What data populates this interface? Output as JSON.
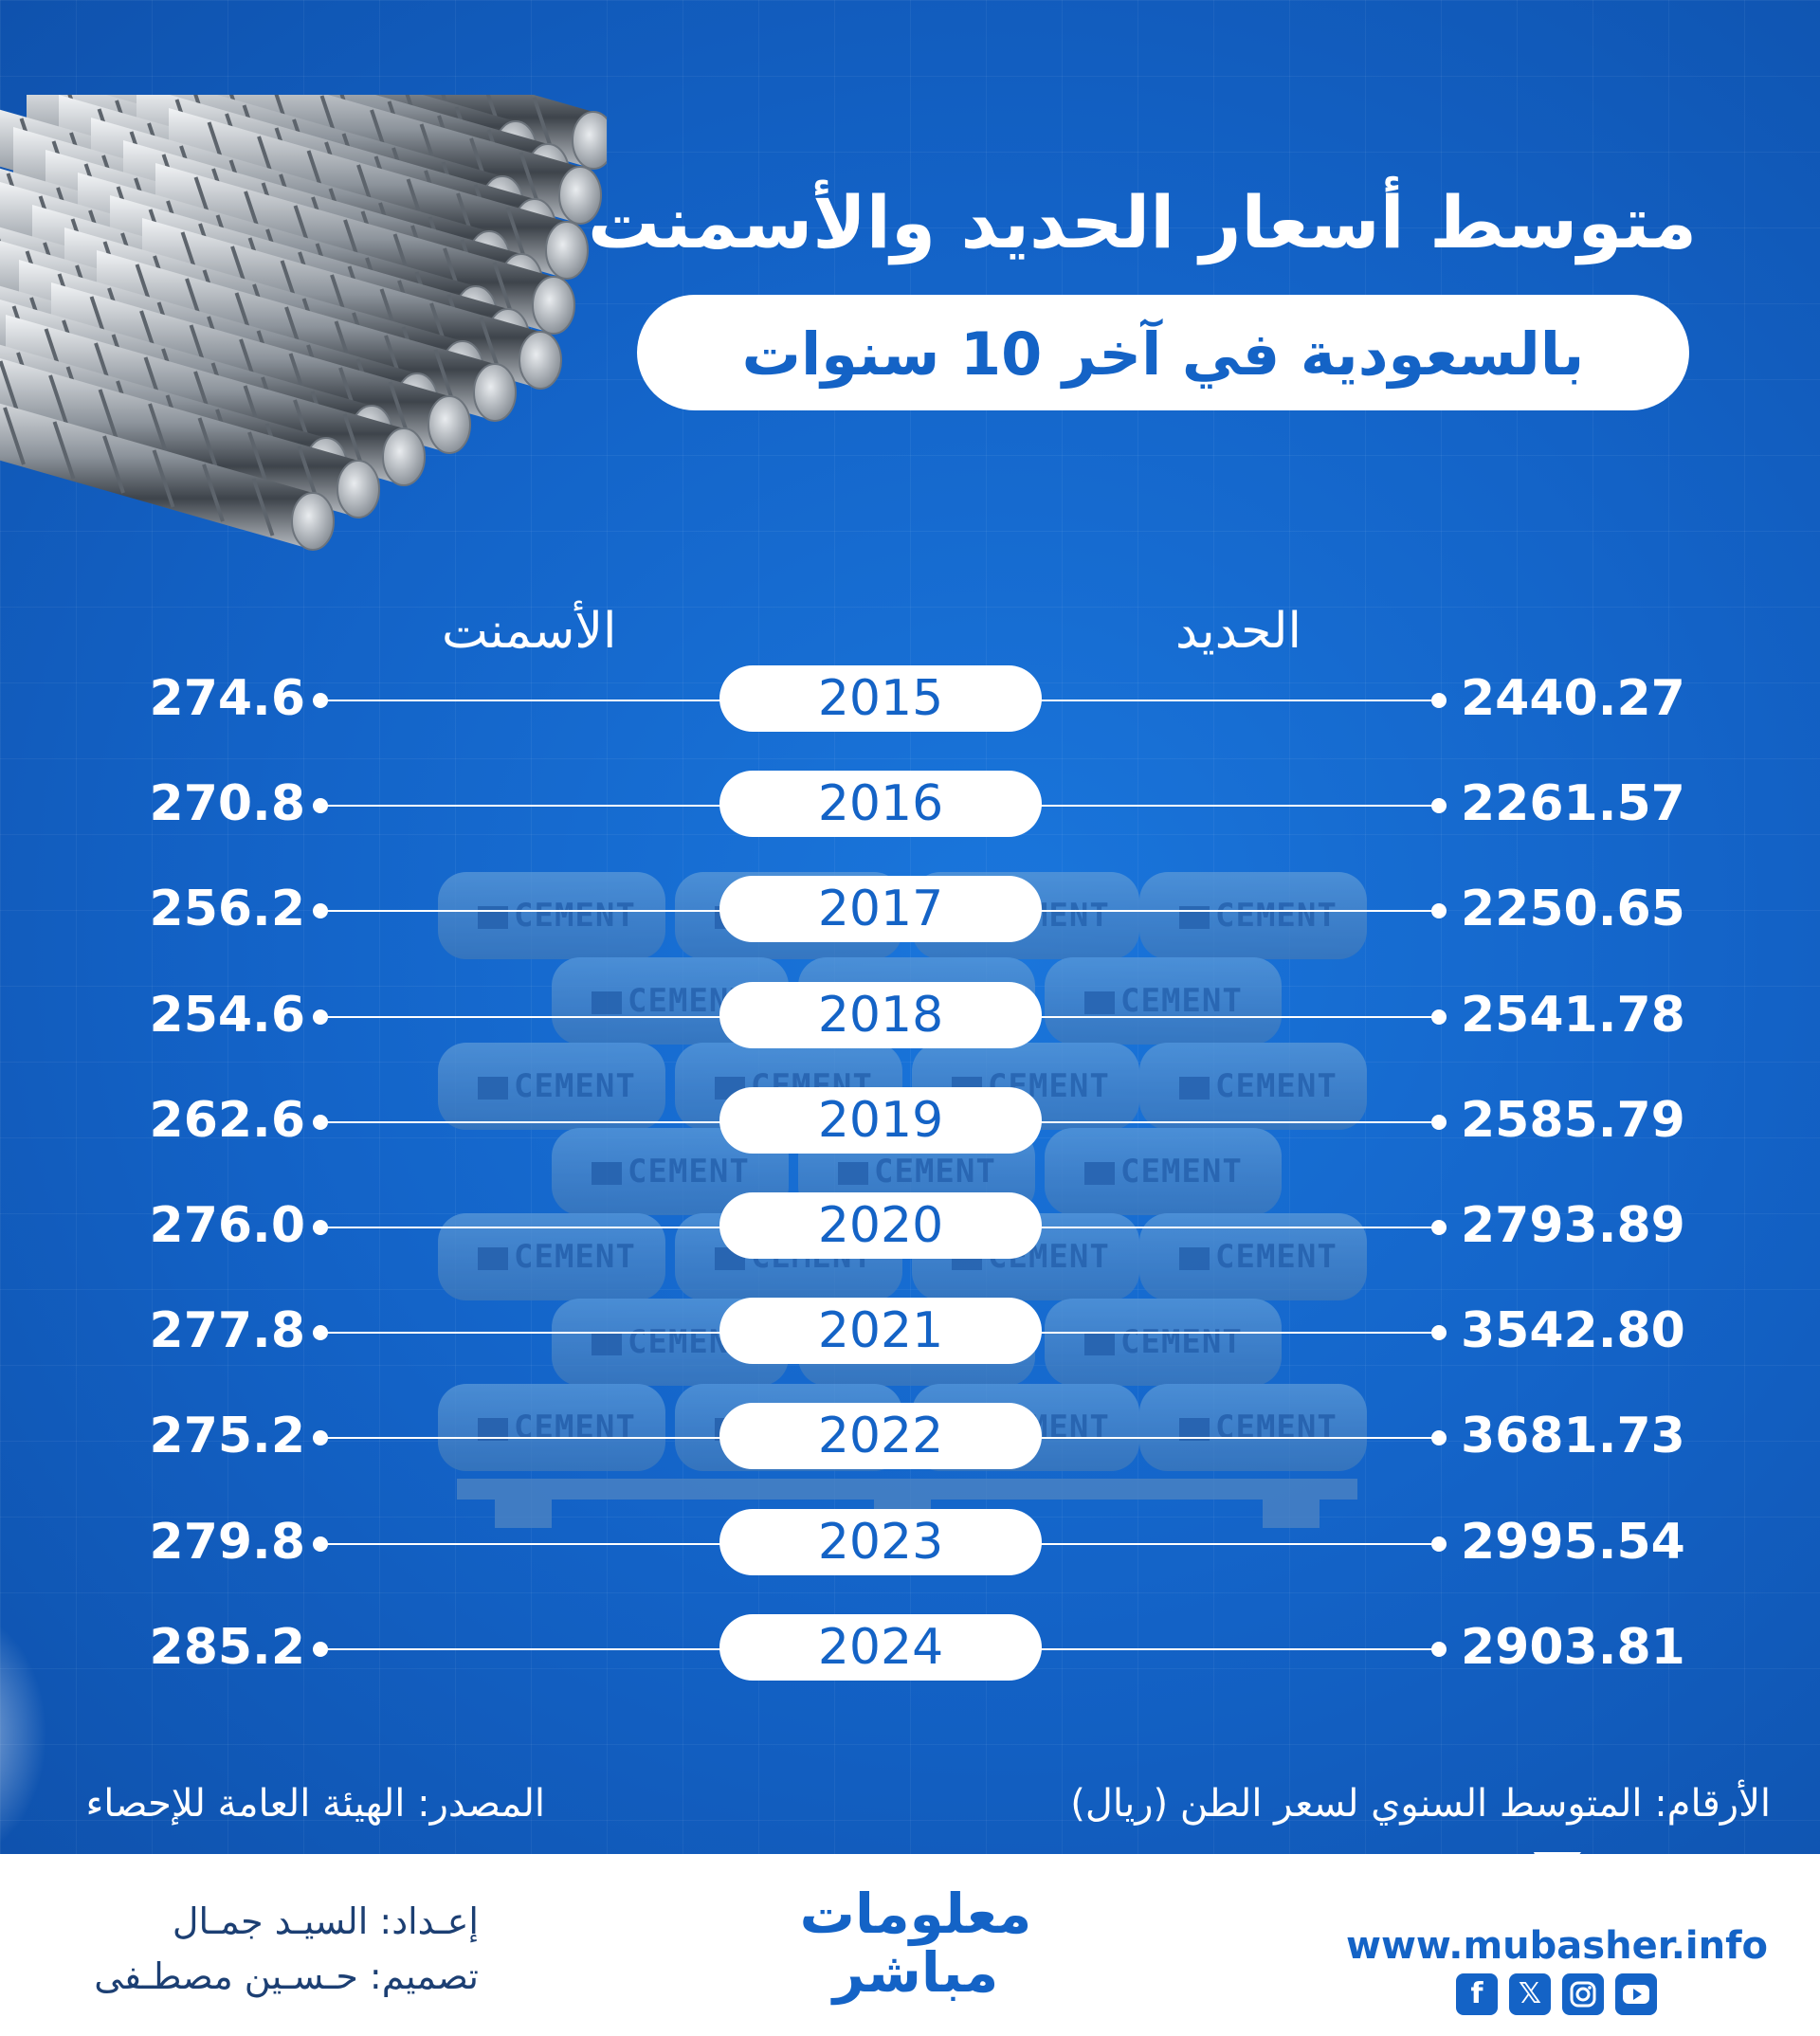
{
  "title": "متوسط أسعار الحديد والأسمنت",
  "subtitle": "بالسعودية في آخر 10 سنوات",
  "column_headers": {
    "steel": "الحديد",
    "cement": "الأسمنت"
  },
  "note_units": "الأرقام: المتوسط السنوي لسعر الطن (ريال)",
  "note_source": "المصدر: الهيئة العامة للإحصاء",
  "credits": {
    "prepared_by": "إعـداد: السيـد جمـال",
    "design_by": "تصميم: حـسـين مصطـفى"
  },
  "brand": {
    "line1": "معلومات",
    "line2": "مباشر",
    "url": "www.mubasher.info"
  },
  "illustration_labels": {
    "bag_label": "CEMENT"
  },
  "social_icons": [
    "facebook-icon",
    "x-icon",
    "instagram-icon",
    "youtube-icon"
  ],
  "colors": {
    "background": "#1565c8",
    "accent": "#1463c6",
    "text": "#ffffff"
  },
  "chart_data": {
    "type": "table",
    "categories": [
      "2015",
      "2016",
      "2017",
      "2018",
      "2019",
      "2020",
      "2021",
      "2022",
      "2023",
      "2024"
    ],
    "series": [
      {
        "name": "الحديد",
        "values": [
          "2440.27",
          "2261.57",
          "2250.65",
          "2541.78",
          "2585.79",
          "2793.89",
          "3542.80",
          "3681.73",
          "2995.54",
          "2903.81"
        ]
      },
      {
        "name": "الأسمنت",
        "values": [
          "274.6",
          "270.8",
          "256.2",
          "254.6",
          "262.6",
          "276.0",
          "277.8",
          "275.2",
          "279.8",
          "285.2"
        ]
      }
    ]
  }
}
